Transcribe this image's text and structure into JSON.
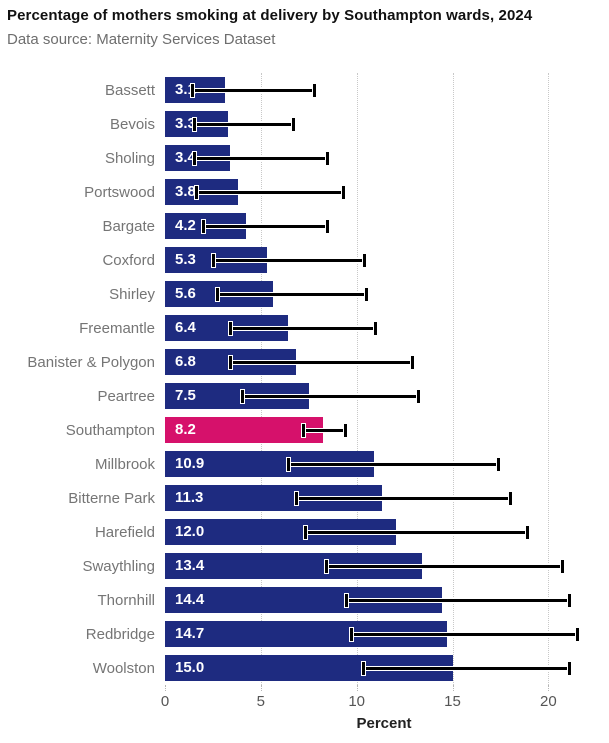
{
  "header": {
    "title": "Percentage of mothers smoking at delivery by Southampton wards, 2024",
    "subtitle": "Data source: Maternity Services Dataset"
  },
  "chart_data": {
    "type": "bar",
    "orientation": "horizontal",
    "title": "Percentage of mothers smoking at delivery by Southampton wards, 2024",
    "subtitle": "Data source: Maternity Services Dataset",
    "xlabel": "Percent",
    "ylabel": "",
    "xlim": [
      0,
      22.8
    ],
    "xticks": [
      0,
      5,
      10,
      15,
      20
    ],
    "grid": "dotted-vertical-at-5-10-15-20",
    "legend": "none",
    "categories": [
      "Bassett",
      "Bevois",
      "Sholing",
      "Portswood",
      "Bargate",
      "Coxford",
      "Shirley",
      "Freemantle",
      "Banister & Polygon",
      "Peartree",
      "Southampton",
      "Millbrook",
      "Bitterne Park",
      "Harefield",
      "Swaythling",
      "Thornhill",
      "Redbridge",
      "Woolston"
    ],
    "values": [
      3.1,
      3.3,
      3.4,
      3.8,
      4.2,
      5.3,
      5.6,
      6.4,
      6.8,
      7.5,
      8.2,
      10.9,
      11.3,
      12.0,
      13.4,
      14.4,
      14.7,
      15.0
    ],
    "value_labels": [
      "3.1",
      "3.3",
      "3.4",
      "3.8",
      "4.2",
      "5.3",
      "5.6",
      "6.4",
      "6.8",
      "7.5",
      "8.2",
      "10.9",
      "11.3",
      "12.0",
      "13.4",
      "14.4",
      "14.7",
      "15.0"
    ],
    "ci_low": [
      1.4,
      1.5,
      1.5,
      1.6,
      2.0,
      2.5,
      2.7,
      3.4,
      3.4,
      4.0,
      7.2,
      6.4,
      6.8,
      7.3,
      8.4,
      9.4,
      9.7,
      10.3
    ],
    "ci_high": [
      7.8,
      6.7,
      8.5,
      9.3,
      8.5,
      10.4,
      10.5,
      11.0,
      12.9,
      13.2,
      9.4,
      17.4,
      18.0,
      18.9,
      20.7,
      21.1,
      21.5,
      21.1
    ],
    "highlight_category": "Southampton",
    "highlight_index": 10,
    "colors": {
      "bar": "#1e2b80",
      "highlight": "#d6116b",
      "error_bar": "#000000",
      "grid": "#c8c8c8",
      "ward_label": "#757575",
      "value_label": "#ffffff",
      "axis_text": "#555555",
      "title": "#111111",
      "subtitle": "#6e6e6e"
    }
  }
}
